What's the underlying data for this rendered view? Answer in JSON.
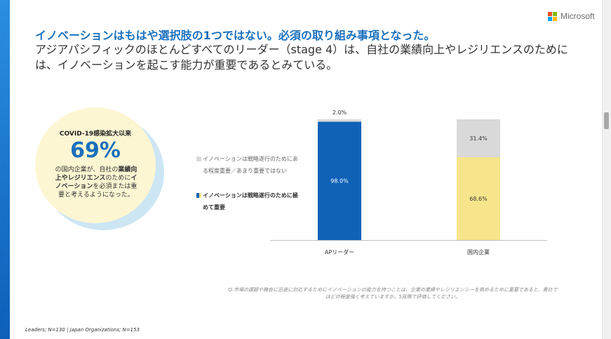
{
  "brand": {
    "name": "Microsoft",
    "logo_colors": [
      "#f25022",
      "#7fba00",
      "#00a4ef",
      "#ffb900"
    ]
  },
  "title": "イノベーションはもはや選択肢の1つではない。必須の取り組み事項となった。",
  "subtitle": "アジアパシフィックのほとんどすべてのリーダー（stage 4）は、自社の業績向上やレジリエンスのためには、イノベーションを起こす能力が重要であるとみている。",
  "callout": {
    "heading": "COVID-19感染拡大以来",
    "stat": "69%",
    "text_line1": "の国内企業が、自社の",
    "text_bold1": "業績向上やレジリエンス",
    "text_line2": "のために",
    "text_bold2": "イノベーション",
    "text_line3": "を必須または重要と考えるようになった。"
  },
  "chart_data": {
    "type": "bar",
    "stacked": true,
    "categories": [
      "APリーダー",
      "国内企業"
    ],
    "series": [
      {
        "name": "イノベーションは戦略遂行のために極めて重要",
        "values": [
          98.0,
          68.6
        ],
        "colors": [
          "#0f62b8",
          "#f6e58b"
        ]
      },
      {
        "name": "イノベーションは戦略遂行のためにある程度重要／あまり重要ではない",
        "values": [
          2.0,
          31.4
        ],
        "colors": [
          "#d9d9d9",
          "#d9d9d9"
        ]
      }
    ],
    "data_labels": [
      [
        "98.0%",
        "2.0%"
      ],
      [
        "68.6%",
        "31.4%"
      ]
    ],
    "ylim": [
      0,
      100
    ],
    "grid": false,
    "legend_position": "left"
  },
  "legend": {
    "item1": "イノベーションは戦略遂行のためにある程度重要／あまり重要ではない",
    "item2": "イノベーションは戦略遂行のために極めて重要"
  },
  "colors": {
    "ap_primary": "#0f62b8",
    "japan_primary": "#f6e58b",
    "secondary": "#d9d9d9",
    "accent": "#1a6fbd"
  },
  "footnote": "Q:市場の課題や機会に迅速に対応するためにイノベーションの能力を持つことは、企業の業績やレジリエンシーを高めるために重要であると、貴社ではどの程度強く考えていますか。5段階で評価してください。",
  "footer": "Leaders; N=130 | Japan Organizations; N=153"
}
